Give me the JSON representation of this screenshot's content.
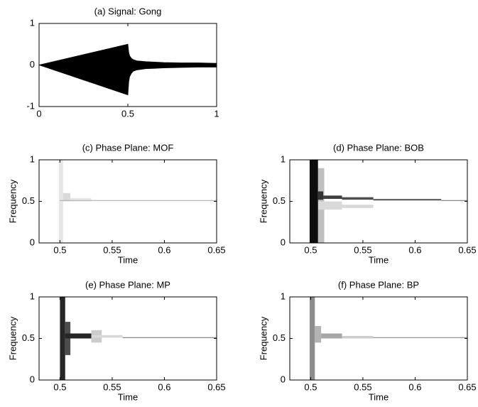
{
  "chart_data": [
    {
      "type": "line",
      "title": "(a) Signal: Gong",
      "x": [
        0,
        0.5,
        0.505,
        0.51,
        0.52,
        0.53,
        0.55,
        0.6,
        0.65,
        0.7,
        0.8,
        0.9,
        1.0
      ],
      "series": [
        {
          "color": "#000000",
          "values": [
            0,
            0.5,
            0.3,
            0.22,
            0.16,
            0.13,
            0.1,
            0.08,
            0.07,
            0.06,
            0.05,
            0.05,
            0.04
          ]
        },
        {
          "color": "#000000",
          "values": [
            0,
            -0.72,
            -0.4,
            -0.28,
            -0.2,
            -0.15,
            -0.12,
            -0.09,
            -0.08,
            -0.07,
            -0.06,
            -0.05,
            -0.05
          ]
        }
      ],
      "xlim": [
        0,
        1
      ],
      "xticks": [
        0,
        0.5,
        1
      ],
      "ylim": [
        -1,
        1
      ],
      "yticks": [
        -1,
        0,
        1
      ]
    },
    {
      "type": "heatmap",
      "title": "(c) Phase Plane: MOF",
      "x_label": "Time",
      "y_label": "Frequency",
      "tiles": [
        {
          "t": [
            0.499,
            0.503
          ],
          "f": [
            0,
            1
          ],
          "value": 0.1
        },
        {
          "t": [
            0.503,
            0.51
          ],
          "f": [
            0.5,
            0.6
          ],
          "value": 0.15
        },
        {
          "t": [
            0.51,
            0.53
          ],
          "f": [
            0.5,
            0.54
          ],
          "value": 0.1
        },
        {
          "t": [
            0.5,
            0.65
          ],
          "f": [
            0.505,
            0.515
          ],
          "value": 0.3
        }
      ],
      "xlim": [
        0.48,
        0.65
      ],
      "xticks": [
        0.5,
        0.55,
        0.6,
        0.65
      ],
      "ylim": [
        0,
        1
      ],
      "yticks": [
        0,
        0.5,
        1
      ]
    },
    {
      "type": "heatmap",
      "title": "(d) Phase Plane: BOB",
      "x_label": "Time",
      "y_label": "Frequency",
      "tiles": [
        {
          "t": [
            0.507,
            0.513
          ],
          "f": [
            0,
            0.9
          ],
          "value": 0.25
        },
        {
          "t": [
            0.507,
            0.53
          ],
          "f": [
            0.4,
            0.5
          ],
          "value": 0.15
        },
        {
          "t": [
            0.53,
            0.56
          ],
          "f": [
            0.42,
            0.46
          ],
          "value": 0.15
        },
        {
          "t": [
            0.499,
            0.507
          ],
          "f": [
            0,
            1
          ],
          "value": 0.95
        },
        {
          "t": [
            0.507,
            0.512
          ],
          "f": [
            0.52,
            0.62
          ],
          "value": 0.8
        },
        {
          "t": [
            0.512,
            0.53
          ],
          "f": [
            0.53,
            0.57
          ],
          "value": 0.75
        },
        {
          "t": [
            0.53,
            0.56
          ],
          "f": [
            0.52,
            0.55
          ],
          "value": 0.7
        },
        {
          "t": [
            0.56,
            0.625
          ],
          "f": [
            0.51,
            0.53
          ],
          "value": 0.6
        },
        {
          "t": [
            0.625,
            0.65
          ],
          "f": [
            0.505,
            0.515
          ],
          "value": 0.5
        }
      ],
      "xlim": [
        0.48,
        0.65
      ],
      "xticks": [
        0.5,
        0.55,
        0.6,
        0.65
      ],
      "ylim": [
        0,
        1
      ],
      "yticks": [
        0,
        0.5,
        1
      ]
    },
    {
      "type": "heatmap",
      "title": "(e) Phase Plane: MP",
      "x_label": "Time",
      "y_label": "Frequency",
      "tiles": [
        {
          "t": [
            0.53,
            0.54
          ],
          "f": [
            0.45,
            0.6
          ],
          "value": 0.2
        },
        {
          "t": [
            0.53,
            0.56
          ],
          "f": [
            0.51,
            0.54
          ],
          "value": 0.15
        },
        {
          "t": [
            0.5,
            0.505
          ],
          "f": [
            0,
            1
          ],
          "value": 0.85
        },
        {
          "t": [
            0.505,
            0.51
          ],
          "f": [
            0.3,
            0.7
          ],
          "value": 0.7
        },
        {
          "t": [
            0.505,
            0.53
          ],
          "f": [
            0.5,
            0.56
          ],
          "value": 0.85
        },
        {
          "t": [
            0.56,
            0.65
          ],
          "f": [
            0.505,
            0.515
          ],
          "value": 0.5
        }
      ],
      "xlim": [
        0.48,
        0.65
      ],
      "xticks": [
        0.5,
        0.55,
        0.6,
        0.65
      ],
      "ylim": [
        0,
        1
      ],
      "yticks": [
        0,
        0.5,
        1
      ]
    },
    {
      "type": "heatmap",
      "title": "(f) Phase Plane: BP",
      "x_label": "Time",
      "y_label": "Frequency",
      "tiles": [
        {
          "t": [
            0.499,
            0.504
          ],
          "f": [
            0,
            1
          ],
          "value": 0.45
        },
        {
          "t": [
            0.504,
            0.51
          ],
          "f": [
            0.45,
            0.65
          ],
          "value": 0.3
        },
        {
          "t": [
            0.51,
            0.53
          ],
          "f": [
            0.5,
            0.56
          ],
          "value": 0.35
        },
        {
          "t": [
            0.53,
            0.56
          ],
          "f": [
            0.5,
            0.53
          ],
          "value": 0.2
        },
        {
          "t": [
            0.56,
            0.65
          ],
          "f": [
            0.505,
            0.515
          ],
          "value": 0.45
        }
      ],
      "xlim": [
        0.48,
        0.65
      ],
      "xticks": [
        0.5,
        0.55,
        0.6,
        0.65
      ],
      "ylim": [
        0,
        1
      ],
      "yticks": [
        0,
        0.5,
        1
      ]
    }
  ]
}
